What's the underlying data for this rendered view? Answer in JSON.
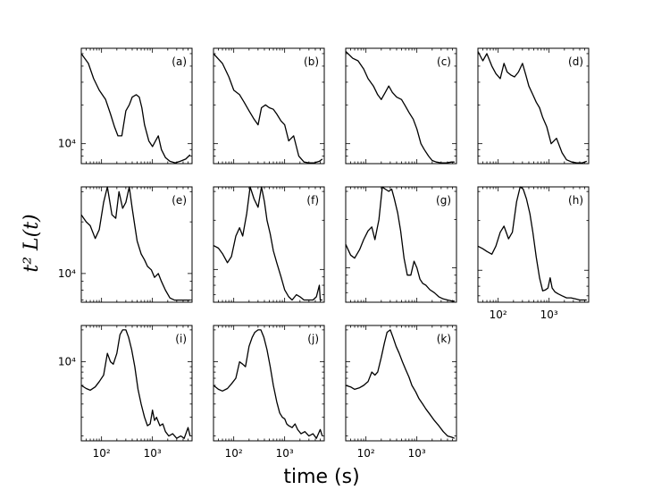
{
  "figure": {
    "xlabel": "time (s)",
    "ylabel": "t² L(t)"
  },
  "chart_data": {
    "type": "line",
    "xscale": "log",
    "yscale": "log",
    "xlim": [
      40,
      6000
    ],
    "grid": false,
    "x_tick_labels": [
      "10²",
      "10³"
    ],
    "y_tick_labels": [
      "10⁴"
    ],
    "panels": [
      {
        "label": "(a)",
        "x": [
          40,
          55,
          70,
          90,
          120,
          150,
          180,
          210,
          250,
          300,
          350,
          400,
          480,
          550,
          620,
          700,
          850,
          1000,
          1150,
          1300,
          1500,
          1800,
          2200,
          2800,
          3500,
          4500,
          5500
        ],
        "y": [
          50000,
          42000,
          32000,
          26000,
          22000,
          17000,
          13500,
          11500,
          11500,
          18000,
          20000,
          23000,
          24000,
          23000,
          19000,
          14000,
          10500,
          9500,
          10500,
          11500,
          9000,
          7800,
          7300,
          7100,
          7300,
          7600,
          8200
        ],
        "ylim": [
          7000,
          55000
        ]
      },
      {
        "label": "(b)",
        "x": [
          40,
          60,
          80,
          100,
          130,
          160,
          200,
          250,
          300,
          350,
          420,
          500,
          600,
          700,
          850,
          1000,
          1200,
          1500,
          1900,
          2400,
          3000,
          3800,
          4800,
          5500
        ],
        "y": [
          50000,
          42000,
          33000,
          26000,
          24000,
          21000,
          18000,
          15500,
          14000,
          19000,
          20000,
          19000,
          18500,
          17000,
          15000,
          14000,
          10500,
          11500,
          8000,
          7200,
          7100,
          7100,
          7300,
          7600
        ],
        "ylim": [
          7000,
          55000
        ]
      },
      {
        "label": "(c)",
        "x": [
          40,
          55,
          70,
          90,
          110,
          140,
          170,
          200,
          240,
          280,
          330,
          400,
          500,
          600,
          700,
          850,
          1000,
          1200,
          1400,
          1700,
          2000,
          2400,
          3000,
          3800,
          4800,
          5500
        ],
        "y": [
          52000,
          46000,
          44000,
          38000,
          32000,
          28000,
          24000,
          22000,
          25000,
          28000,
          25000,
          23000,
          22000,
          19500,
          17500,
          15500,
          13000,
          10000,
          9000,
          8000,
          7400,
          7200,
          7100,
          7100,
          7200,
          7200
        ],
        "ylim": [
          7000,
          55000
        ]
      },
      {
        "label": "(d)",
        "x": [
          40,
          50,
          60,
          75,
          90,
          110,
          130,
          150,
          180,
          210,
          250,
          300,
          350,
          400,
          480,
          560,
          650,
          750,
          900,
          1100,
          1400,
          1800,
          2200,
          2800,
          3500,
          4500,
          5500
        ],
        "y": [
          52000,
          44000,
          50000,
          40000,
          35000,
          32000,
          42000,
          36000,
          34000,
          33000,
          36000,
          42000,
          34000,
          28000,
          24000,
          21000,
          19000,
          16000,
          13500,
          10000,
          11000,
          8500,
          7500,
          7200,
          7100,
          7100,
          7300
        ],
        "ylim": [
          7000,
          55000
        ]
      },
      {
        "label": "(e)",
        "x": [
          40,
          50,
          60,
          75,
          90,
          110,
          130,
          160,
          190,
          220,
          260,
          300,
          350,
          400,
          450,
          500,
          600,
          700,
          800,
          950,
          1100,
          1300,
          1500,
          1800,
          2200,
          2700,
          3300,
          4000,
          5000,
          5500
        ],
        "y": [
          22000,
          20000,
          19000,
          16000,
          18000,
          26000,
          32000,
          22000,
          21000,
          30000,
          24000,
          26000,
          32000,
          24000,
          19000,
          15500,
          13000,
          12000,
          11000,
          10500,
          9500,
          10000,
          9000,
          8000,
          7200,
          7000,
          7000,
          7000,
          7000,
          7000
        ],
        "ylim": [
          6800,
          32000
        ]
      },
      {
        "label": "(f)",
        "x": [
          40,
          50,
          60,
          75,
          90,
          110,
          130,
          150,
          180,
          210,
          250,
          300,
          350,
          400,
          450,
          520,
          600,
          700,
          850,
          1000,
          1200,
          1400,
          1700,
          2000,
          2400,
          3000,
          3600,
          4200,
          4800,
          5000,
          5500
        ],
        "y": [
          14000,
          13500,
          12500,
          11000,
          12000,
          16000,
          18000,
          16000,
          22000,
          32000,
          27000,
          24000,
          32000,
          26000,
          20000,
          16500,
          13000,
          11000,
          9000,
          7500,
          6800,
          6500,
          7000,
          6800,
          6500,
          6500,
          6500,
          6800,
          8000,
          6500,
          6500
        ],
        "ylim": [
          6300,
          32000
        ]
      },
      {
        "label": "(g)",
        "x": [
          40,
          50,
          60,
          75,
          90,
          110,
          130,
          150,
          180,
          210,
          240,
          280,
          320,
          360,
          420,
          480,
          560,
          650,
          760,
          880,
          1000,
          1150,
          1300,
          1500,
          1800,
          2200,
          2700,
          3300,
          4000,
          5000,
          5500
        ],
        "y": [
          14000,
          12000,
          11500,
          13000,
          15000,
          17000,
          18000,
          15000,
          20000,
          32000,
          31000,
          30000,
          31000,
          27000,
          22000,
          17000,
          11500,
          9000,
          9000,
          11000,
          10000,
          8500,
          8000,
          7800,
          7300,
          7000,
          6600,
          6400,
          6300,
          6200,
          6200
        ],
        "ylim": [
          6100,
          32000
        ]
      },
      {
        "label": "(h)",
        "x": [
          40,
          50,
          60,
          75,
          90,
          110,
          130,
          160,
          190,
          230,
          270,
          310,
          360,
          420,
          480,
          560,
          650,
          750,
          850,
          950,
          1050,
          1150,
          1300,
          1500,
          1800,
          2200,
          2700,
          3300,
          4000,
          4800,
          5500
        ],
        "y": [
          14000,
          13500,
          13000,
          12500,
          14000,
          17000,
          18500,
          15500,
          17000,
          26000,
          32000,
          31000,
          27000,
          22000,
          17000,
          12000,
          9000,
          7500,
          7600,
          7800,
          9000,
          7800,
          7400,
          7200,
          7000,
          6800,
          6800,
          6700,
          6600,
          6600,
          6600
        ],
        "ylim": [
          6400,
          32000
        ]
      },
      {
        "label": "(i)",
        "x": [
          40,
          50,
          60,
          75,
          90,
          110,
          130,
          150,
          170,
          200,
          230,
          260,
          300,
          340,
          390,
          450,
          520,
          600,
          700,
          800,
          900,
          1000,
          1100,
          1200,
          1400,
          1600,
          1800,
          2100,
          2500,
          3000,
          3600,
          4200,
          5000,
          5500
        ],
        "y": [
          6000,
          5600,
          5400,
          5800,
          6500,
          7500,
          12000,
          10000,
          9500,
          12000,
          18000,
          20000,
          20000,
          17000,
          13000,
          9000,
          5500,
          4000,
          3000,
          2500,
          2600,
          3500,
          2800,
          3000,
          2500,
          2600,
          2200,
          2000,
          2100,
          1900,
          2000,
          1900,
          2400,
          2000
        ],
        "ylim": [
          1800,
          22000
        ]
      },
      {
        "label": "(j)",
        "x": [
          40,
          50,
          60,
          75,
          90,
          110,
          130,
          150,
          170,
          200,
          230,
          260,
          300,
          340,
          390,
          450,
          520,
          600,
          700,
          800,
          900,
          1000,
          1100,
          1200,
          1400,
          1600,
          1800,
          2100,
          2500,
          3000,
          3600,
          4200,
          5000,
          5500
        ],
        "y": [
          6000,
          5500,
          5300,
          5600,
          6200,
          7000,
          10000,
          9500,
          9000,
          14000,
          17000,
          19000,
          20000,
          20000,
          17000,
          13000,
          9000,
          6000,
          4200,
          3300,
          3000,
          2900,
          2600,
          2500,
          2400,
          2600,
          2300,
          2100,
          2200,
          2000,
          2100,
          1900,
          2300,
          2000
        ],
        "ylim": [
          1800,
          22000
        ]
      },
      {
        "label": "(k)",
        "x": [
          40,
          50,
          60,
          75,
          90,
          110,
          130,
          150,
          170,
          200,
          230,
          260,
          300,
          340,
          390,
          450,
          520,
          600,
          700,
          800,
          950,
          1100,
          1300,
          1500,
          1800,
          2200,
          2700,
          3300,
          4000,
          4800,
          5500
        ],
        "y": [
          6000,
          5800,
          5500,
          5700,
          6000,
          6500,
          8000,
          7500,
          8000,
          11000,
          15000,
          19000,
          20000,
          17000,
          14000,
          12000,
          10000,
          8500,
          7200,
          6000,
          5200,
          4500,
          4000,
          3600,
          3200,
          2800,
          2500,
          2200,
          2000,
          1950,
          1900
        ],
        "ylim": [
          1800,
          22000
        ]
      }
    ]
  }
}
